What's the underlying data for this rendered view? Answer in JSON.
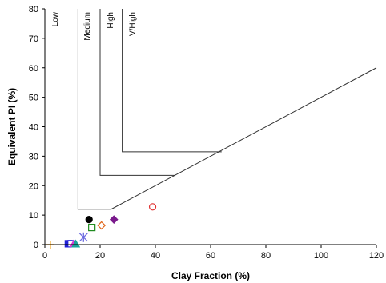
{
  "chart_data": {
    "type": "scatter",
    "title": "",
    "xlabel": "Clay Fraction (%)",
    "ylabel": "Equivalent PI (%)",
    "xlim": [
      0,
      120
    ],
    "ylim": [
      0,
      80
    ],
    "x_ticks": [
      0,
      20,
      40,
      60,
      80,
      100,
      120
    ],
    "y_ticks": [
      0,
      10,
      20,
      30,
      40,
      50,
      60,
      70,
      80
    ],
    "grid": false,
    "legend": "none",
    "zone_labels": [
      "Low",
      "Medium",
      "High",
      "V/High"
    ],
    "zone_boundaries": [
      {
        "name": "Low",
        "points": [
          [
            12,
            80
          ],
          [
            12,
            12
          ],
          [
            24,
            12
          ]
        ]
      },
      {
        "name": "Medium",
        "points": [
          [
            20,
            80
          ],
          [
            20,
            23.5
          ],
          [
            47,
            23.5
          ]
        ]
      },
      {
        "name": "High",
        "points": [
          [
            28,
            80
          ],
          [
            28,
            31.5
          ],
          [
            64,
            31.5
          ]
        ]
      },
      {
        "name": "trend",
        "points": [
          [
            24,
            12
          ],
          [
            120,
            60
          ]
        ]
      }
    ],
    "points": [
      {
        "x": 2,
        "y": 0,
        "marker": "plus",
        "color": "#f5a623",
        "fill": "none"
      },
      {
        "x": 8.5,
        "y": 0.3,
        "marker": "square",
        "color": "#1f1fd6",
        "fill": "#1f1fd6"
      },
      {
        "x": 9.5,
        "y": 0.3,
        "marker": "square",
        "color": "#1f1fd6",
        "fill": "#ffffff"
      },
      {
        "x": 10.5,
        "y": 0.3,
        "marker": "triangle",
        "color": "#d63ad6",
        "fill": "#d63ad6"
      },
      {
        "x": 11.2,
        "y": 0.2,
        "marker": "triangle",
        "color": "#1aa39a",
        "fill": "#1aa39a"
      },
      {
        "x": 14,
        "y": 2.5,
        "marker": "asterisk",
        "color": "#6c6ce0",
        "fill": "none"
      },
      {
        "x": 16,
        "y": 8.5,
        "marker": "circle",
        "color": "#000000",
        "fill": "#000000"
      },
      {
        "x": 17,
        "y": 5.8,
        "marker": "square",
        "color": "#1e8a1e",
        "fill": "#ffffff"
      },
      {
        "x": 20.5,
        "y": 6.5,
        "marker": "diamond",
        "color": "#e0661a",
        "fill": "#ffffff"
      },
      {
        "x": 25,
        "y": 8.5,
        "marker": "diamond",
        "color": "#7a1a8c",
        "fill": "#7a1a8c"
      },
      {
        "x": 39,
        "y": 12.8,
        "marker": "circle",
        "color": "#e03030",
        "fill": "#ffffff"
      }
    ]
  }
}
